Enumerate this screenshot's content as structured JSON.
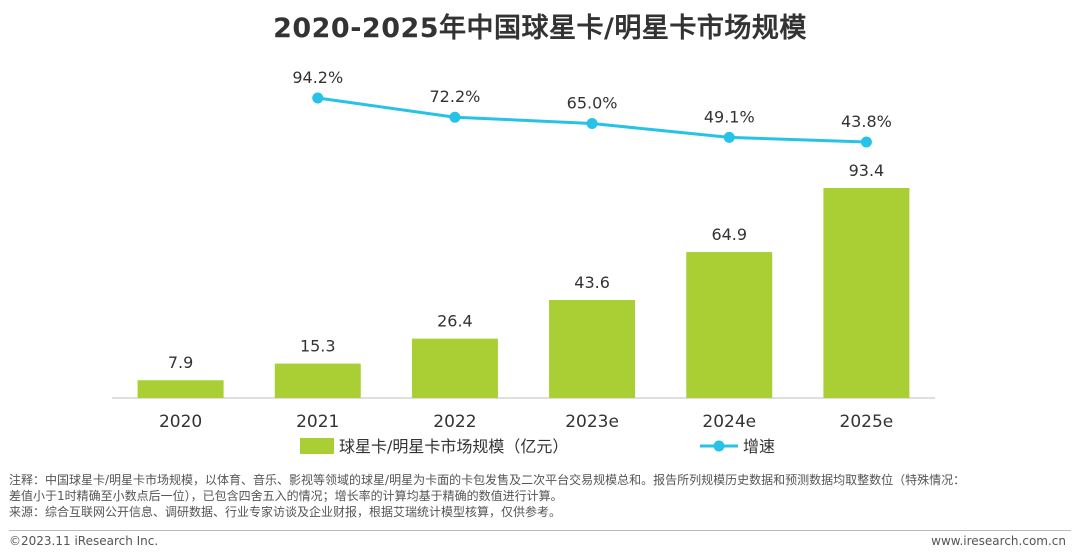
{
  "title": "2020-2025年中国球星卡/明星卡市场规模",
  "colors": {
    "bar": "#a9cf35",
    "line": "#27c3e6",
    "text": "#333333"
  },
  "chart_data": {
    "type": "bar",
    "categories": [
      "2020",
      "2021",
      "2022",
      "2023e",
      "2024e",
      "2025e"
    ],
    "series": [
      {
        "name": "球星卡/明星卡市场规模（亿元）",
        "type": "bar",
        "values": [
          7.9,
          15.3,
          26.4,
          43.6,
          64.9,
          93.4
        ],
        "labels": [
          "7.9",
          "15.3",
          "26.4",
          "43.6",
          "64.9",
          "93.4"
        ]
      },
      {
        "name": "增速",
        "type": "line",
        "values": [
          null,
          94.2,
          72.2,
          65.0,
          49.1,
          43.8
        ],
        "labels": [
          "",
          "94.2%",
          "72.2%",
          "65.0%",
          "49.1%",
          "43.8%"
        ]
      }
    ],
    "legend_position": "bottom"
  },
  "notes": {
    "line1": "注释：中国球星卡/明星卡市场规模，以体育、音乐、影视等领域的球星/明星为卡面的卡包发售及二次平台交易规模总和。报告所列规模历史数据和预测数据均取整数位（特殊情况：",
    "line2": "差值小于1时精确至小数点后一位），已包含四舍五入的情况；增长率的计算均基于精确的数值进行计算。",
    "line3": "来源：综合互联网公开信息、调研数据、行业专家访谈及企业财报，根据艾瑞统计模型核算，仅供参考。"
  },
  "footer": {
    "copyright": "©2023.11 iResearch Inc.",
    "website": "www.iresearch.com.cn"
  }
}
